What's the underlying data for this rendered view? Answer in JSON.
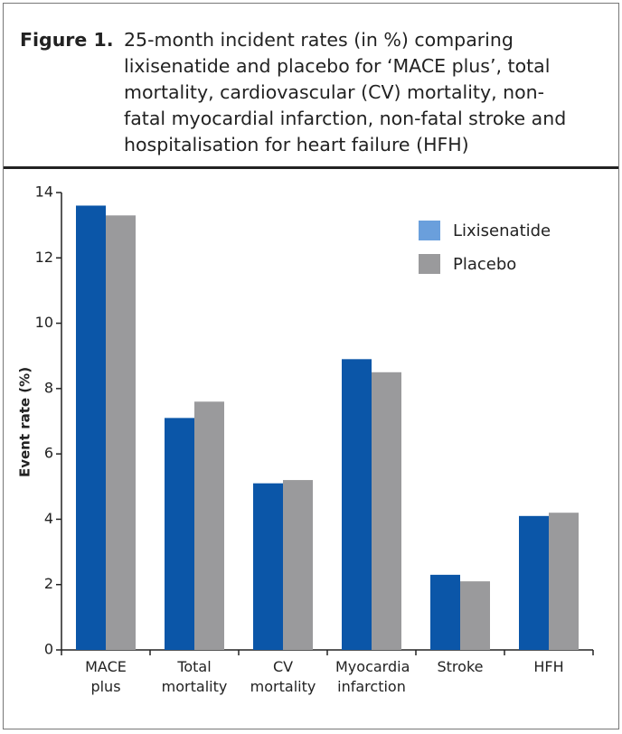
{
  "chart_data": {
    "type": "bar",
    "label": "Figure 1.",
    "title": "25-month incident rates (in %) comparing lixisenatide and placebo for ‘MACE plus’, total mortality, cardiovascular (CV) mortality, non-fatal myocardial infarction, non-fatal stroke and hospitalisation for heart failure (HFH)",
    "y_label": "Event rate (%)",
    "categories": [
      "MACE plus",
      "Total mortality",
      "CV mortality",
      "Myocardia infarction",
      "Stroke",
      "HFH"
    ],
    "series": [
      {
        "name": "Lixisenatide",
        "color": "#0b56a8",
        "legend_color": "#6a9fdc",
        "values": [
          13.6,
          7.1,
          5.1,
          8.9,
          2.3,
          4.1
        ]
      },
      {
        "name": "Placebo",
        "color": "#9a9a9c",
        "legend_color": "#9a9a9c",
        "values": [
          13.3,
          7.6,
          5.2,
          8.5,
          2.1,
          4.2
        ]
      }
    ],
    "ylim": [
      0,
      14
    ],
    "yticks": [
      0,
      2,
      4,
      6,
      8,
      10,
      12,
      14
    ],
    "grid": false,
    "legend": "top-right"
  }
}
